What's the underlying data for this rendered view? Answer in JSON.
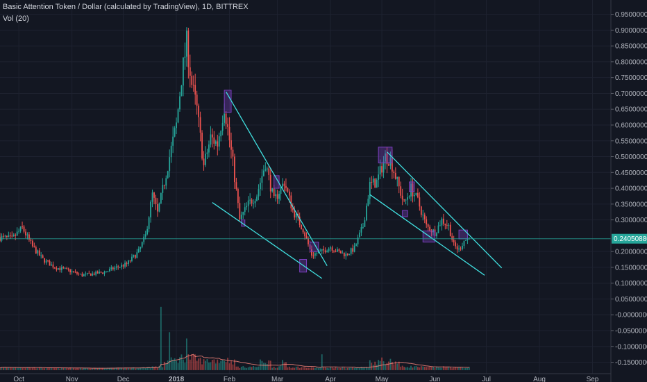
{
  "header": {
    "title": "Basic Attention Token / Dollar (calculated by TradingView), 1D, BITTREX",
    "volume_indicator": "Vol (20)"
  },
  "colors": {
    "background": "#131722",
    "grid": "#1e2230",
    "candle_up": "#26a69a",
    "candle_down": "#ef5350",
    "trendline": "#40e0e0",
    "highlight_box": "#7b3fbf",
    "volume_ma": "#ff8a80",
    "last_price_line": "#26a69a"
  },
  "chart_data": {
    "type": "candlestick",
    "title": "Basic Attention Token / Dollar (calculated by TradingView), 1D, BITTREX",
    "y_axis_position": "right",
    "ylim": [
      -0.175,
      0.98
    ],
    "y_ticks": [
      {
        "value": 0.95,
        "label": "0.95000000"
      },
      {
        "value": 0.9,
        "label": "0.90000000"
      },
      {
        "value": 0.85,
        "label": "0.85000000"
      },
      {
        "value": 0.8,
        "label": "0.80000000"
      },
      {
        "value": 0.75,
        "label": "0.75000000"
      },
      {
        "value": 0.7,
        "label": "0.70000000"
      },
      {
        "value": 0.65,
        "label": "0.65000000"
      },
      {
        "value": 0.6,
        "label": "0.60000000"
      },
      {
        "value": 0.55,
        "label": "0.55000000"
      },
      {
        "value": 0.5,
        "label": "0.50000000"
      },
      {
        "value": 0.45,
        "label": "0.45000000"
      },
      {
        "value": 0.4,
        "label": "0.40000000"
      },
      {
        "value": 0.35,
        "label": "0.35000000"
      },
      {
        "value": 0.3,
        "label": "0.30000000"
      },
      {
        "value": 0.2,
        "label": "0.20000000"
      },
      {
        "value": 0.15,
        "label": "0.15000000"
      },
      {
        "value": 0.1,
        "label": "0.10000000"
      },
      {
        "value": 0.05,
        "label": "0.05000000"
      },
      {
        "value": 0.0,
        "label": "-0.00000000"
      },
      {
        "value": -0.05,
        "label": "-0.05000000"
      },
      {
        "value": -0.1,
        "label": "-0.10000000"
      },
      {
        "value": -0.15,
        "label": "-0.15000000"
      }
    ],
    "x_ticks": [
      {
        "label": "Oct",
        "date": "2017-10-01",
        "bold": false
      },
      {
        "label": "Nov",
        "date": "2017-11-01",
        "bold": false
      },
      {
        "label": "Dec",
        "date": "2017-12-01",
        "bold": false
      },
      {
        "label": "2018",
        "date": "2018-01-01",
        "bold": true
      },
      {
        "label": "Feb",
        "date": "2018-02-01",
        "bold": false
      },
      {
        "label": "Mar",
        "date": "2018-03-01",
        "bold": false
      },
      {
        "label": "Apr",
        "date": "2018-04-01",
        "bold": false
      },
      {
        "label": "May",
        "date": "2018-05-01",
        "bold": false
      },
      {
        "label": "Jun",
        "date": "2018-06-01",
        "bold": false
      },
      {
        "label": "Jul",
        "date": "2018-07-01",
        "bold": false
      },
      {
        "label": "Aug",
        "date": "2018-08-01",
        "bold": false
      },
      {
        "label": "Sep",
        "date": "2018-09-01",
        "bold": false
      }
    ],
    "last_price": {
      "value": 0.2405,
      "label": "0.24050880"
    },
    "grid": true,
    "price_anchors": [
      [
        "2017-09-20",
        0.245
      ],
      [
        "2017-09-27",
        0.24
      ],
      [
        "2017-10-03",
        0.275
      ],
      [
        "2017-10-09",
        0.215
      ],
      [
        "2017-10-15",
        0.175
      ],
      [
        "2017-10-22",
        0.15
      ],
      [
        "2017-10-30",
        0.14
      ],
      [
        "2017-11-07",
        0.125
      ],
      [
        "2017-11-14",
        0.13
      ],
      [
        "2017-11-20",
        0.135
      ],
      [
        "2017-11-27",
        0.15
      ],
      [
        "2017-12-03",
        0.16
      ],
      [
        "2017-12-10",
        0.2
      ],
      [
        "2017-12-14",
        0.25
      ],
      [
        "2017-12-18",
        0.38
      ],
      [
        "2017-12-21",
        0.32
      ],
      [
        "2017-12-25",
        0.42
      ],
      [
        "2017-12-28",
        0.5
      ],
      [
        "2018-01-01",
        0.6
      ],
      [
        "2018-01-04",
        0.75
      ],
      [
        "2018-01-07",
        0.86
      ],
      [
        "2018-01-10",
        0.73
      ],
      [
        "2018-01-13",
        0.65
      ],
      [
        "2018-01-17",
        0.47
      ],
      [
        "2018-01-21",
        0.56
      ],
      [
        "2018-01-25",
        0.54
      ],
      [
        "2018-01-29",
        0.66
      ],
      [
        "2018-02-03",
        0.48
      ],
      [
        "2018-02-07",
        0.3
      ],
      [
        "2018-02-12",
        0.35
      ],
      [
        "2018-02-17",
        0.38
      ],
      [
        "2018-02-22",
        0.48
      ],
      [
        "2018-02-27",
        0.36
      ],
      [
        "2018-03-05",
        0.42
      ],
      [
        "2018-03-10",
        0.33
      ],
      [
        "2018-03-16",
        0.27
      ],
      [
        "2018-03-21",
        0.19
      ],
      [
        "2018-03-27",
        0.2
      ],
      [
        "2018-04-01",
        0.215
      ],
      [
        "2018-04-05",
        0.2
      ],
      [
        "2018-04-10",
        0.19
      ],
      [
        "2018-04-15",
        0.21
      ],
      [
        "2018-04-20",
        0.28
      ],
      [
        "2018-04-24",
        0.41
      ],
      [
        "2018-04-28",
        0.42
      ],
      [
        "2018-05-03",
        0.5
      ],
      [
        "2018-05-06",
        0.49
      ],
      [
        "2018-05-10",
        0.42
      ],
      [
        "2018-05-14",
        0.35
      ],
      [
        "2018-05-18",
        0.4
      ],
      [
        "2018-05-22",
        0.36
      ],
      [
        "2018-05-27",
        0.28
      ],
      [
        "2018-06-01",
        0.26
      ],
      [
        "2018-06-05",
        0.3
      ],
      [
        "2018-06-09",
        0.28
      ],
      [
        "2018-06-12",
        0.22
      ],
      [
        "2018-06-15",
        0.205
      ],
      [
        "2018-06-18",
        0.235
      ],
      [
        "2018-06-21",
        0.2405
      ]
    ],
    "volume_spikes": [
      {
        "date": "2017-12-23",
        "volume": 0.2
      },
      {
        "date": "2017-12-28",
        "volume": 0.12
      },
      {
        "date": "2018-01-07",
        "volume": 0.1
      },
      {
        "date": "2018-03-27",
        "volume": 0.05
      },
      {
        "date": "2018-05-01",
        "volume": 0.04
      }
    ],
    "trendlines": [
      {
        "from": [
          "2018-01-30",
          0.705
        ],
        "to": [
          "2018-03-30",
          0.155
        ]
      },
      {
        "from": [
          "2018-01-22",
          0.355
        ],
        "to": [
          "2018-03-27",
          0.115
        ]
      },
      {
        "from": [
          "2018-05-04",
          0.515
        ],
        "to": [
          "2018-07-10",
          0.148
        ]
      },
      {
        "from": [
          "2018-04-24",
          0.38
        ],
        "to": [
          "2018-06-30",
          0.125
        ]
      }
    ],
    "highlight_boxes": [
      {
        "from": "2018-01-29",
        "to": "2018-02-02",
        "ylim": [
          0.64,
          0.71
        ]
      },
      {
        "from": "2018-02-08",
        "to": "2018-02-10",
        "ylim": [
          0.28,
          0.3
        ]
      },
      {
        "from": "2018-02-27",
        "to": "2018-03-02",
        "ylim": [
          0.4,
          0.44
        ]
      },
      {
        "from": "2018-03-14",
        "to": "2018-03-18",
        "ylim": [
          0.135,
          0.175
        ]
      },
      {
        "from": "2018-03-20",
        "to": "2018-03-25",
        "ylim": [
          0.2,
          0.23
        ]
      },
      {
        "from": "2018-04-29",
        "to": "2018-05-07",
        "ylim": [
          0.48,
          0.53
        ]
      },
      {
        "from": "2018-05-13",
        "to": "2018-05-16",
        "ylim": [
          0.31,
          0.33
        ]
      },
      {
        "from": "2018-05-17",
        "to": "2018-05-20",
        "ylim": [
          0.39,
          0.42
        ]
      },
      {
        "from": "2018-05-25",
        "to": "2018-06-01",
        "ylim": [
          0.23,
          0.265
        ]
      },
      {
        "from": "2018-06-15",
        "to": "2018-06-20",
        "ylim": [
          0.24,
          0.268
        ]
      }
    ]
  }
}
